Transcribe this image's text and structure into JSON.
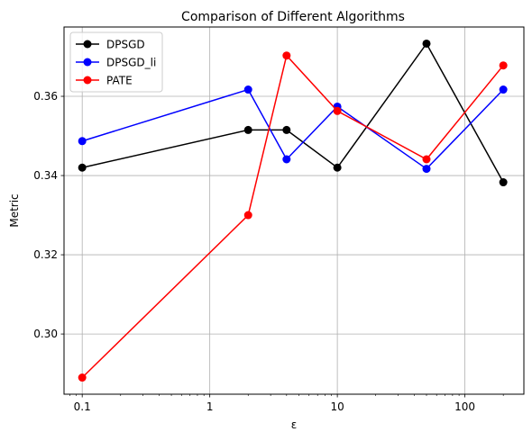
{
  "chart_data": {
    "type": "line",
    "title": "Comparison of Different Algorithms",
    "xlabel": "ε",
    "ylabel": "Metric",
    "xscale": "log",
    "xlim": [
      0.072,
      290
    ],
    "ylim": [
      0.2848,
      0.3775
    ],
    "x": [
      0.1,
      2,
      4,
      10,
      50,
      200
    ],
    "xticks": [
      0.1,
      1,
      10,
      100
    ],
    "xtick_labels": [
      "0.1",
      "1",
      "10",
      "100"
    ],
    "yticks": [
      0.3,
      0.32,
      0.34,
      0.36
    ],
    "ytick_labels": [
      "0.30",
      "0.32",
      "0.34",
      "0.36"
    ],
    "grid": true,
    "legend_position": "top-left",
    "series": [
      {
        "name": "DPSGD",
        "color": "#000000",
        "values": [
          0.342,
          0.3515,
          0.3515,
          0.342,
          0.3733,
          0.3383
        ]
      },
      {
        "name": "DPSGD_li",
        "color": "#0000ff",
        "values": [
          0.3487,
          0.3617,
          0.3441,
          0.3574,
          0.3417,
          0.3617
        ]
      },
      {
        "name": "PATE",
        "color": "#ff0000",
        "values": [
          0.289,
          0.33,
          0.3703,
          0.3563,
          0.3441,
          0.3678
        ]
      }
    ]
  }
}
